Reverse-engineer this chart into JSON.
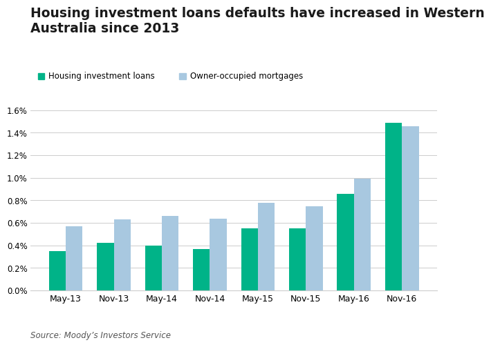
{
  "title": "Housing investment loans defaults have increased in Western\nAustralia since 2013",
  "title_fontsize": 13.5,
  "source": "Source: Moody’s Investors Service",
  "categories": [
    "May-13",
    "Nov-13",
    "May-14",
    "Nov-14",
    "May-15",
    "Nov-15",
    "May-16",
    "Nov-16"
  ],
  "housing_investment": [
    0.0035,
    0.0042,
    0.004,
    0.0037,
    0.0055,
    0.0055,
    0.0086,
    0.0149
  ],
  "owner_occupied": [
    0.0057,
    0.0063,
    0.0066,
    0.0064,
    0.0078,
    0.0075,
    0.0099,
    0.0146
  ],
  "color_housing": "#00B388",
  "color_owner": "#A8C8E0",
  "legend_housing": "Housing investment loans",
  "legend_owner": "Owner-occupied mortgages",
  "ylim": [
    0,
    0.017
  ],
  "yticks": [
    0.0,
    0.002,
    0.004,
    0.006,
    0.008,
    0.01,
    0.012,
    0.014,
    0.016
  ],
  "background_color": "#ffffff",
  "bar_width": 0.35
}
